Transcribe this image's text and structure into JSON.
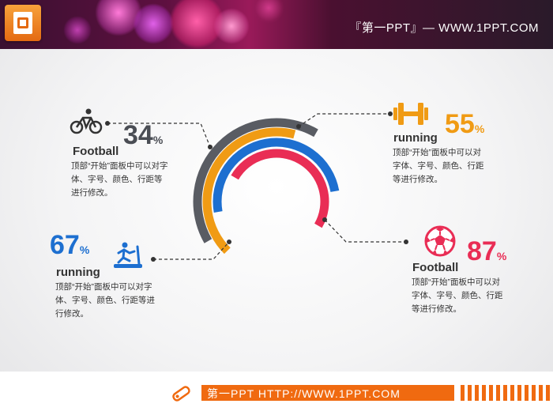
{
  "header": {
    "title": "『第一PPT』— WWW.1PPT.COM"
  },
  "footer": {
    "text": "第一PPT HTTP://WWW.1PPT.COM"
  },
  "colors": {
    "gray": "#595c63",
    "orange": "#f09b14",
    "blue": "#1d6fd0",
    "red": "#e92d55",
    "dark_text": "#333333"
  },
  "items": [
    {
      "id": "top-left",
      "icon": "bicycle-icon",
      "label": "Football",
      "value": "34",
      "unit": "%",
      "description": "顶部“开始”面板中可以对字体、字号、颜色、行距等进行修改。",
      "color": "#595c63"
    },
    {
      "id": "top-right",
      "icon": "dumbbell-icon",
      "label": "running",
      "value": "55",
      "unit": "%",
      "description": "顶部“开始”面板中可以对字体、字号、颜色、行距等进行修改。",
      "color": "#f09b14"
    },
    {
      "id": "bottom-left",
      "icon": "treadmill-icon",
      "label": "running",
      "value": "67",
      "unit": "%",
      "description": "顶部“开始”面板中可以对字体、字号、颜色、行距等进行修改。",
      "color": "#1d6fd0"
    },
    {
      "id": "bottom-right",
      "icon": "soccer-ball-icon",
      "label": "Football",
      "value": "87",
      "unit": "%",
      "description": "顶部“开始”面板中可以对字体、字号、颜色、行距等进行修改。",
      "color": "#e92d55"
    }
  ]
}
